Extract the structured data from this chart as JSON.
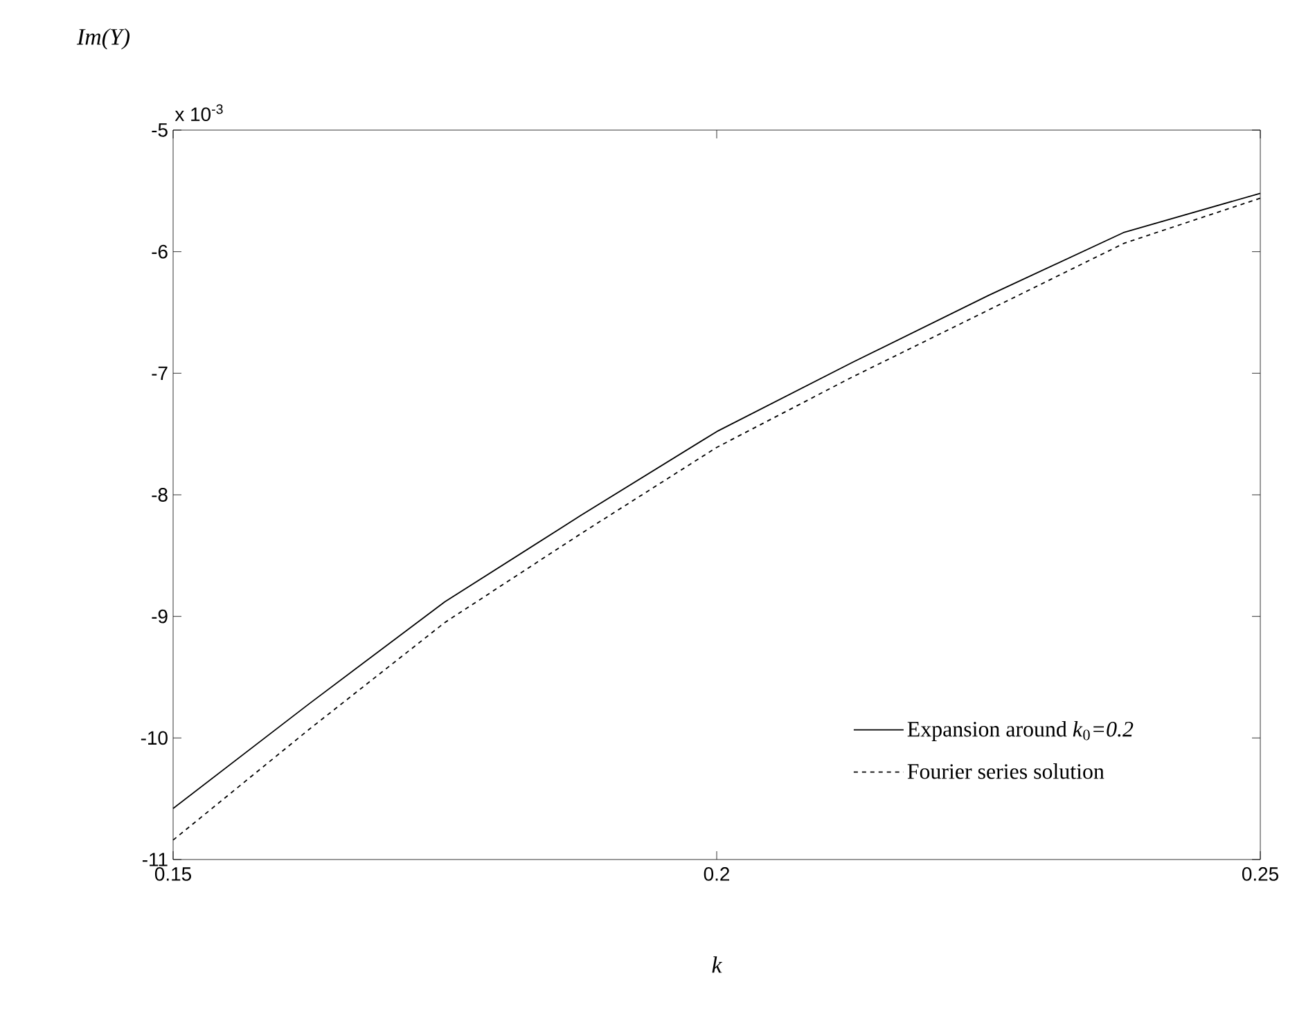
{
  "chart_data": {
    "type": "line",
    "xlabel": "k",
    "ylabel": "Im(Y)",
    "annotations": [
      "x 10$^{-3}$"
    ],
    "x": [
      0.15,
      0.1625,
      0.175,
      0.1875,
      0.2,
      0.2125,
      0.225,
      0.2375,
      0.25
    ],
    "series": [
      {
        "name": "Expansion around *k*$_{0}$*=0.2*",
        "color": "#000000",
        "line_style": "solid",
        "values": [
          -10.58,
          -9.72,
          -8.88,
          -8.17,
          -7.48,
          -6.91,
          -6.36,
          -5.84,
          -5.52
        ]
      },
      {
        "name": "Fourier series solution",
        "color": "#000000",
        "line_style": "dashed",
        "values": [
          -10.84,
          -9.93,
          -9.05,
          -8.32,
          -7.61,
          -7.03,
          -6.48,
          -5.93,
          -5.56
        ]
      }
    ],
    "xlim": [
      0.15,
      0.25
    ],
    "ylim": [
      -11,
      -5
    ],
    "xticks": [
      0.15,
      0.2,
      0.25
    ],
    "yticks": [
      -11,
      -10,
      -9,
      -8,
      -7,
      -6,
      -5
    ],
    "legend": "bottom right"
  }
}
